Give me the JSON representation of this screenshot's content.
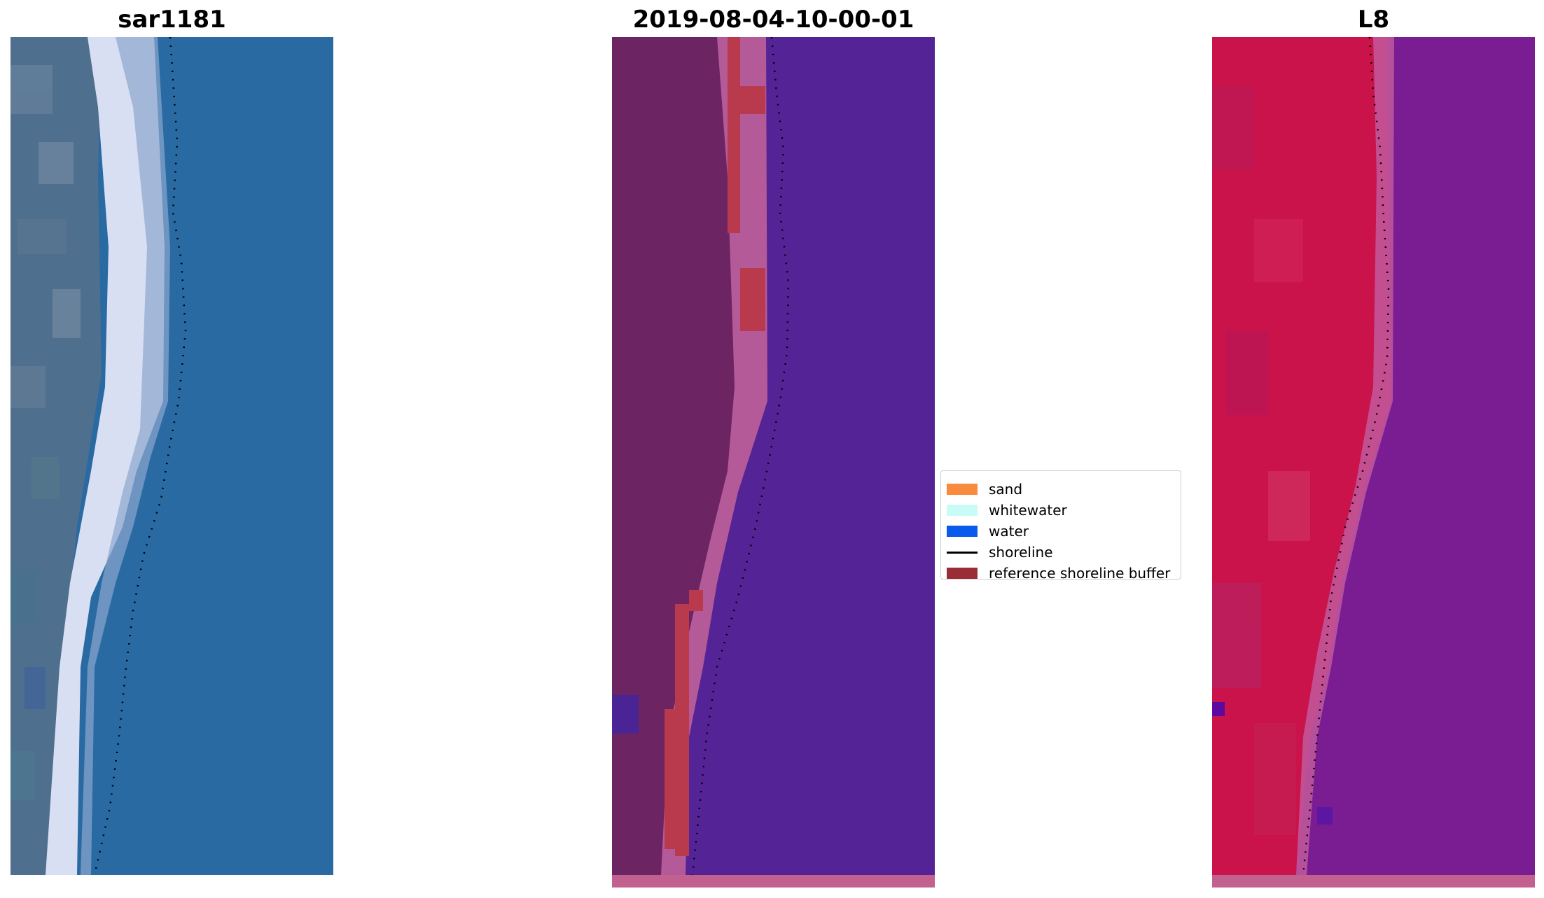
{
  "panels": [
    {
      "title": "sar1181"
    },
    {
      "title": "2019-08-04-10-00-01"
    },
    {
      "title": "L8"
    }
  ],
  "legend": [
    {
      "label": "sand",
      "color": "#f98b3e"
    },
    {
      "label": "whitewater",
      "color": "#c9fbf7"
    },
    {
      "label": "water",
      "color": "#0a5aee"
    },
    {
      "label": "shoreline",
      "color": "#000000"
    },
    {
      "label": "reference shoreline buffer",
      "color": "#9a2c38"
    }
  ]
}
